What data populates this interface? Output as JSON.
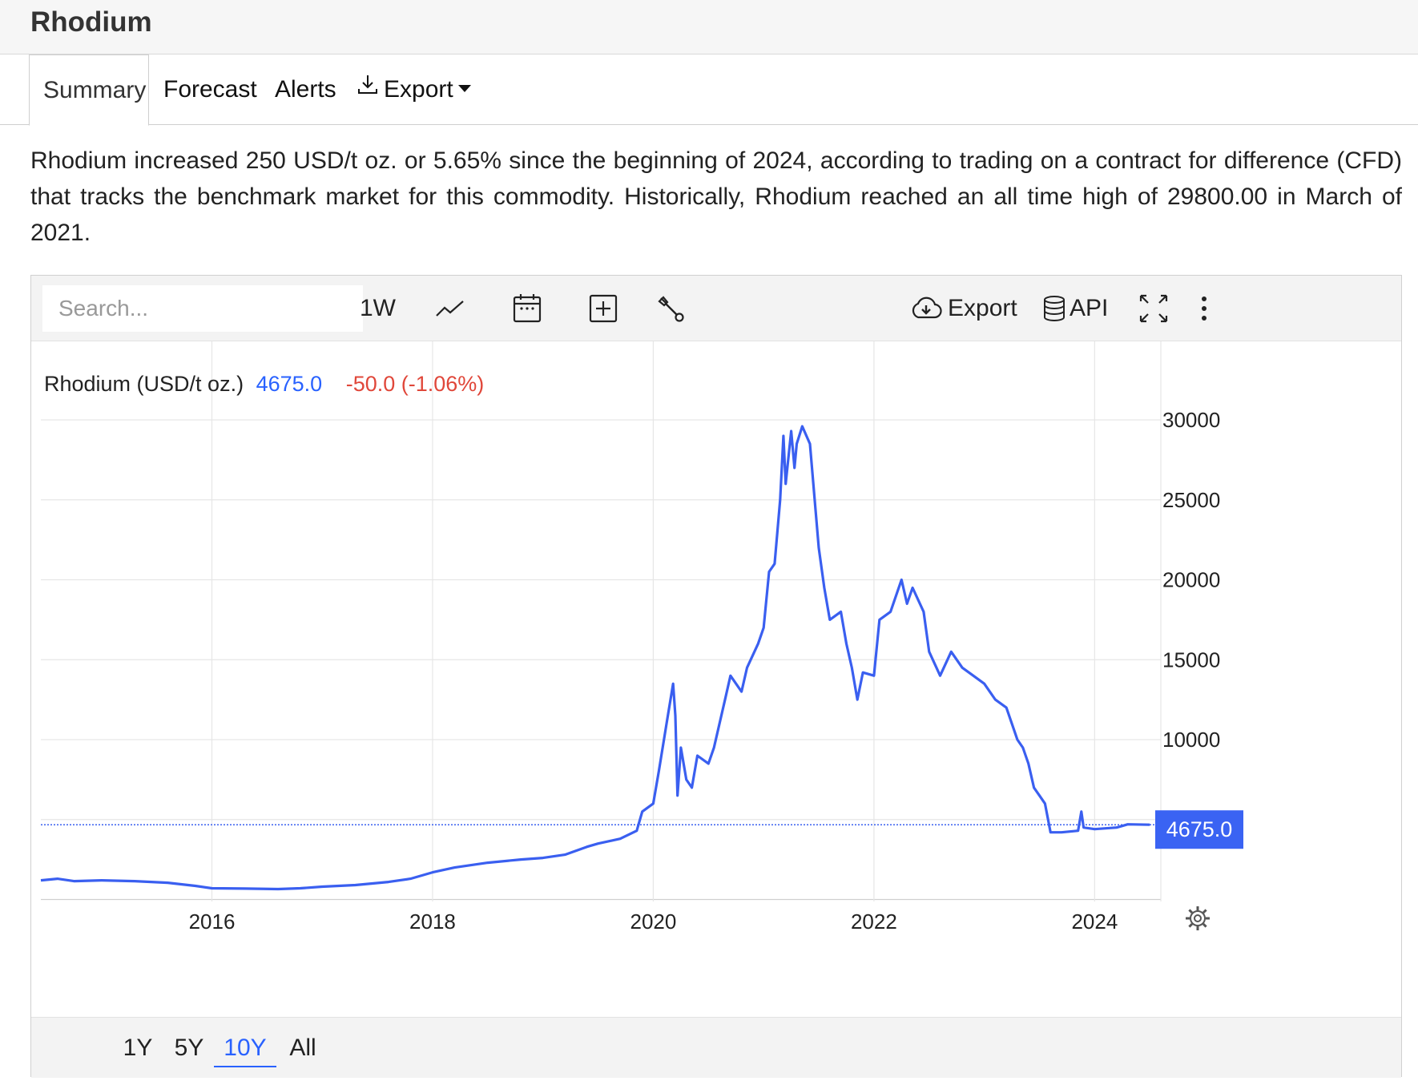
{
  "page": {
    "title": "Rhodium"
  },
  "tabs": [
    {
      "label": "Summary",
      "active": true
    },
    {
      "label": "Forecast",
      "active": false
    },
    {
      "label": "Alerts",
      "active": false
    },
    {
      "label": "Export",
      "active": false,
      "icon": "download-icon",
      "dropdown": true
    }
  ],
  "summary_text": "Rhodium increased 250 USD/t oz. or 5.65% since the beginning of 2024, according to trading on a contract for difference (CFD) that tracks the benchmark market for this commodity. Historically, Rhodium reached an all time high of 29800.00 in March of 2021.",
  "toolbar": {
    "search_placeholder": "Search...",
    "interval_label": "1W",
    "chart_type_icon": "line-chart-icon",
    "calendar_icon": "calendar-icon",
    "compare_icon": "add-compare-icon",
    "settings_icon": "wrench-icon",
    "export_label": "Export",
    "export_icon": "cloud-download-icon",
    "api_label": "API",
    "api_icon": "database-icon",
    "fullscreen_icon": "fullscreen-icon",
    "more_icon": "more-vertical-icon"
  },
  "legend": {
    "name": "Rhodium (USD/t oz.)",
    "last_value": "4675.0",
    "change": "-50.0 (-1.06%)"
  },
  "range_buttons": [
    {
      "label": "1Y",
      "active": false
    },
    {
      "label": "5Y",
      "active": false
    },
    {
      "label": "10Y",
      "active": true
    },
    {
      "label": "All",
      "active": false
    }
  ],
  "colors": {
    "line": "#3a5ff0",
    "price_up": "#2962ff",
    "price_down": "#e0473a",
    "price_tag_bg": "#3a63f3"
  },
  "chart_data": {
    "type": "line",
    "title": "",
    "ylabel": "",
    "xlabel": "",
    "x_ticks": [
      "2016",
      "2018",
      "2020",
      "2022",
      "2024"
    ],
    "y_ticks": [
      "10000",
      "15000",
      "20000",
      "25000",
      "30000"
    ],
    "ylim": [
      0,
      32000
    ],
    "xlim": [
      2014.45,
      2024.6
    ],
    "grid": true,
    "last_price_label": "4675.0",
    "last_price": 4675,
    "series": [
      {
        "name": "Rhodium (USD/t oz.)",
        "points": [
          [
            2014.45,
            1200
          ],
          [
            2014.6,
            1300
          ],
          [
            2014.75,
            1150
          ],
          [
            2015.0,
            1200
          ],
          [
            2015.3,
            1150
          ],
          [
            2015.6,
            1050
          ],
          [
            2015.85,
            850
          ],
          [
            2016.0,
            700
          ],
          [
            2016.3,
            680
          ],
          [
            2016.6,
            650
          ],
          [
            2016.8,
            700
          ],
          [
            2017.0,
            800
          ],
          [
            2017.3,
            900
          ],
          [
            2017.6,
            1100
          ],
          [
            2017.8,
            1300
          ],
          [
            2018.0,
            1700
          ],
          [
            2018.2,
            2000
          ],
          [
            2018.5,
            2300
          ],
          [
            2018.8,
            2500
          ],
          [
            2019.0,
            2600
          ],
          [
            2019.2,
            2800
          ],
          [
            2019.4,
            3300
          ],
          [
            2019.5,
            3500
          ],
          [
            2019.7,
            3800
          ],
          [
            2019.85,
            4300
          ],
          [
            2019.9,
            5500
          ],
          [
            2020.0,
            6000
          ],
          [
            2020.05,
            8000
          ],
          [
            2020.12,
            11000
          ],
          [
            2020.18,
            13500
          ],
          [
            2020.2,
            11500
          ],
          [
            2020.22,
            6500
          ],
          [
            2020.25,
            9500
          ],
          [
            2020.3,
            7500
          ],
          [
            2020.35,
            7000
          ],
          [
            2020.4,
            9000
          ],
          [
            2020.5,
            8500
          ],
          [
            2020.55,
            9500
          ],
          [
            2020.65,
            12500
          ],
          [
            2020.7,
            14000
          ],
          [
            2020.8,
            13000
          ],
          [
            2020.85,
            14500
          ],
          [
            2020.95,
            16000
          ],
          [
            2021.0,
            17000
          ],
          [
            2021.05,
            20500
          ],
          [
            2021.1,
            21000
          ],
          [
            2021.15,
            25000
          ],
          [
            2021.18,
            29000
          ],
          [
            2021.2,
            26000
          ],
          [
            2021.25,
            29300
          ],
          [
            2021.28,
            27000
          ],
          [
            2021.3,
            28500
          ],
          [
            2021.35,
            29600
          ],
          [
            2021.42,
            28500
          ],
          [
            2021.5,
            22000
          ],
          [
            2021.55,
            19500
          ],
          [
            2021.6,
            17500
          ],
          [
            2021.7,
            18000
          ],
          [
            2021.75,
            16000
          ],
          [
            2021.8,
            14500
          ],
          [
            2021.85,
            12500
          ],
          [
            2021.9,
            14200
          ],
          [
            2022.0,
            14000
          ],
          [
            2022.05,
            17500
          ],
          [
            2022.15,
            18000
          ],
          [
            2022.25,
            20000
          ],
          [
            2022.3,
            18500
          ],
          [
            2022.35,
            19500
          ],
          [
            2022.45,
            18000
          ],
          [
            2022.5,
            15500
          ],
          [
            2022.6,
            14000
          ],
          [
            2022.7,
            15500
          ],
          [
            2022.8,
            14500
          ],
          [
            2022.9,
            14000
          ],
          [
            2023.0,
            13500
          ],
          [
            2023.1,
            12500
          ],
          [
            2023.2,
            12000
          ],
          [
            2023.3,
            10000
          ],
          [
            2023.35,
            9500
          ],
          [
            2023.4,
            8500
          ],
          [
            2023.45,
            7000
          ],
          [
            2023.5,
            6500
          ],
          [
            2023.55,
            6000
          ],
          [
            2023.6,
            4200
          ],
          [
            2023.7,
            4200
          ],
          [
            2023.85,
            4300
          ],
          [
            2023.88,
            5500
          ],
          [
            2023.9,
            4500
          ],
          [
            2024.0,
            4400
          ],
          [
            2024.2,
            4500
          ],
          [
            2024.3,
            4700
          ],
          [
            2024.5,
            4675
          ]
        ]
      }
    ]
  }
}
